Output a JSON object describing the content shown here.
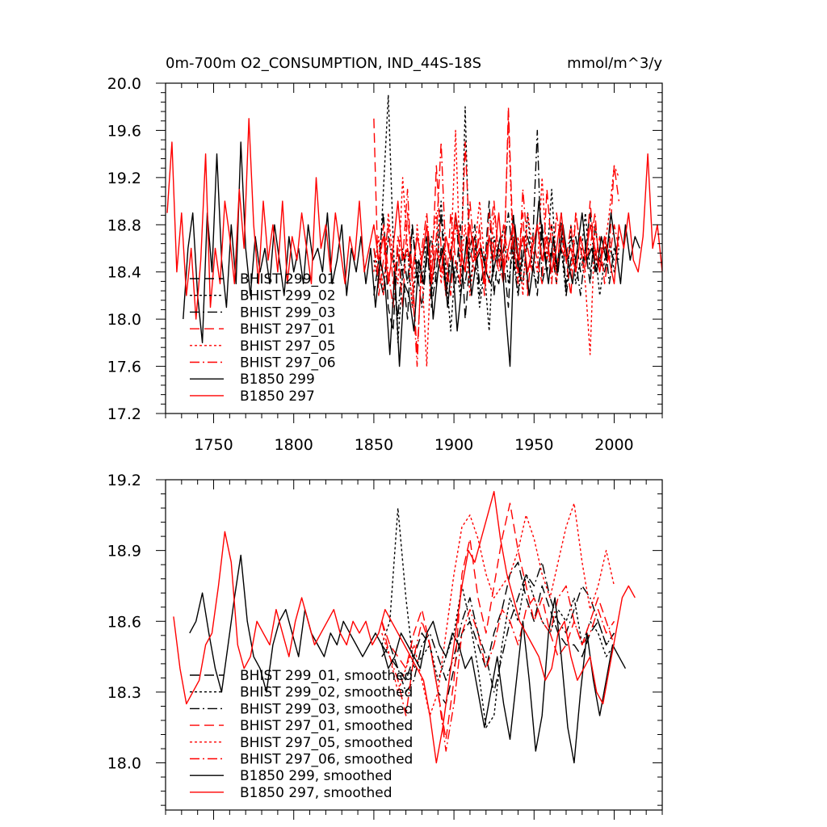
{
  "figure": {
    "title_left": "0m-700m O2_CONSUMPTION, IND_44S-18S",
    "title_right": "mmol/m^3/y"
  },
  "chart_data": [
    {
      "type": "line",
      "xlim": [
        1720,
        2030
      ],
      "ylim": [
        17.2,
        20.0
      ],
      "x_ticks": [
        1750,
        1800,
        1850,
        1900,
        1950,
        2000
      ],
      "x_tick_labels": [
        "1750",
        "1800",
        "1850",
        "1900",
        "1950",
        "2000"
      ],
      "y_ticks": [
        17.2,
        17.6,
        18.0,
        18.4,
        18.8,
        19.2,
        19.6,
        20.0
      ],
      "y_tick_labels": [
        "17.2",
        "17.6",
        "18.0",
        "18.4",
        "18.8",
        "19.2",
        "19.6",
        "20.0"
      ],
      "legend_position": "lower-left",
      "series": [
        {
          "name": "BHIST 299_01",
          "color": "#000000",
          "dash": "long-dash",
          "x_start": 1850,
          "x_step": 3,
          "values": [
            18.2,
            18.5,
            18.9,
            18.1,
            17.9,
            18.6,
            18.4,
            18.0,
            18.8,
            18.3,
            18.5,
            18.7,
            18.1,
            18.4,
            18.9,
            18.2,
            18.6,
            18.3,
            18.8,
            18.0,
            18.5,
            18.7,
            18.3,
            18.4,
            19.0,
            18.2,
            18.6,
            18.5,
            18.1,
            18.9,
            18.4,
            18.3,
            18.7,
            18.5,
            18.2,
            18.8,
            18.4,
            18.6,
            18.3,
            18.9,
            18.2,
            18.5,
            18.7,
            18.4,
            18.6,
            18.3,
            18.8,
            18.5,
            18.4,
            18.6,
            18.5,
            18.7
          ]
        },
        {
          "name": "BHIST 299_02",
          "color": "#000000",
          "dash": "dot",
          "x_start": 1850,
          "x_step": 3,
          "values": [
            18.5,
            18.3,
            19.1,
            19.9,
            18.7,
            17.8,
            18.4,
            18.6,
            18.1,
            18.5,
            18.3,
            18.7,
            18.2,
            18.6,
            19.0,
            18.4,
            17.9,
            18.5,
            18.2,
            19.8,
            18.3,
            18.6,
            18.1,
            18.4,
            17.9,
            18.7,
            18.5,
            18.8,
            18.3,
            18.6,
            18.2,
            18.5,
            18.9,
            18.4,
            18.3,
            18.7,
            18.5,
            19.1,
            18.4,
            18.6,
            18.2,
            18.8,
            18.3,
            18.5,
            18.9,
            18.4,
            18.6,
            18.2,
            18.5,
            18.7,
            18.4,
            18.6
          ]
        },
        {
          "name": "BHIST 299_03",
          "color": "#000000",
          "dash": "dash-dot",
          "x_start": 1850,
          "x_step": 3,
          "values": [
            18.6,
            18.4,
            18.2,
            18.7,
            18.5,
            18.0,
            18.6,
            18.3,
            18.8,
            18.4,
            18.1,
            18.5,
            18.7,
            18.3,
            18.6,
            18.2,
            18.5,
            18.9,
            18.4,
            18.3,
            18.6,
            18.8,
            18.2,
            18.5,
            18.7,
            18.4,
            18.3,
            18.6,
            18.9,
            18.5,
            18.2,
            18.7,
            18.4,
            18.6,
            19.6,
            18.3,
            18.5,
            18.8,
            18.4,
            18.6,
            18.3,
            18.7,
            18.5,
            18.2,
            18.6,
            18.9,
            18.4,
            18.5,
            18.7,
            18.3,
            18.6,
            18.5
          ]
        },
        {
          "name": "BHIST 297_01",
          "color": "#ff0000",
          "dash": "long-dash",
          "x_start": 1850,
          "x_step": 3,
          "values": [
            19.7,
            18.2,
            18.5,
            18.8,
            18.3,
            18.6,
            18.1,
            18.9,
            18.4,
            17.7,
            18.5,
            18.8,
            18.3,
            19.3,
            18.6,
            18.2,
            18.9,
            18.5,
            18.3,
            19.5,
            18.6,
            18.4,
            18.8,
            18.2,
            18.7,
            19.0,
            18.5,
            18.3,
            19.8,
            18.6,
            18.4,
            18.9,
            18.2,
            18.7,
            18.5,
            18.3,
            19.1,
            18.6,
            18.4,
            18.8,
            18.5,
            18.2,
            18.9,
            18.6,
            18.4,
            19.0,
            18.5,
            18.7,
            18.3,
            18.6,
            19.3,
            19.0
          ]
        },
        {
          "name": "BHIST 297_05",
          "color": "#ff0000",
          "dash": "dot",
          "x_start": 1850,
          "x_step": 3,
          "values": [
            18.4,
            18.7,
            18.2,
            18.9,
            18.5,
            18.3,
            19.2,
            18.6,
            18.1,
            18.8,
            18.4,
            17.6,
            18.6,
            18.9,
            18.3,
            18.7,
            18.5,
            19.6,
            18.4,
            18.8,
            18.2,
            18.6,
            19.0,
            18.5,
            18.3,
            18.9,
            18.6,
            18.4,
            19.7,
            18.5,
            18.7,
            18.2,
            18.9,
            18.6,
            18.4,
            19.2,
            18.5,
            18.8,
            18.3,
            18.7,
            18.5,
            18.4,
            18.9,
            18.6,
            18.3,
            17.7,
            18.8,
            18.5,
            18.6,
            18.9,
            19.3,
            19.2
          ]
        },
        {
          "name": "BHIST 297_06",
          "color": "#ff0000",
          "dash": "dash-dot",
          "x_start": 1850,
          "x_step": 3,
          "values": [
            18.6,
            18.3,
            18.8,
            18.4,
            18.1,
            18.7,
            18.5,
            19.1,
            18.3,
            17.6,
            18.6,
            18.9,
            18.4,
            18.7,
            19.5,
            18.5,
            18.2,
            18.8,
            18.6,
            18.4,
            19.0,
            18.5,
            18.7,
            18.3,
            18.9,
            18.6,
            18.4,
            18.8,
            18.5,
            18.7,
            18.3,
            19.1,
            18.6,
            18.4,
            18.8,
            18.5,
            18.7,
            18.3,
            18.9,
            18.6,
            18.5,
            18.8,
            18.4,
            18.7,
            18.5,
            18.6,
            18.9,
            18.4,
            18.7,
            18.5,
            18.8,
            18.6
          ]
        },
        {
          "name": "B1850 299",
          "color": "#000000",
          "dash": "solid",
          "x_start": 1731,
          "x_step": 3,
          "values": [
            18.0,
            18.6,
            18.9,
            18.2,
            17.8,
            18.9,
            18.4,
            19.4,
            18.5,
            18.1,
            18.8,
            18.3,
            19.5,
            18.6,
            18.2,
            18.7,
            18.4,
            18.6,
            18.3,
            18.8,
            18.5,
            18.2,
            18.7,
            18.4,
            18.6,
            18.3,
            18.8,
            18.5,
            18.6,
            18.4,
            18.9,
            18.3,
            18.5,
            18.8,
            18.2,
            18.6,
            18.4,
            18.7,
            18.3,
            18.6,
            18.1,
            18.5,
            18.3,
            17.7,
            18.4,
            17.6,
            18.3,
            18.2,
            17.9,
            18.5,
            18.3,
            18.7,
            18.0,
            18.4,
            18.6,
            18.1,
            18.5,
            17.9,
            18.3,
            18.7,
            18.2,
            18.5,
            18.6,
            18.4,
            18.3,
            18.5,
            18.7,
            18.1,
            17.6,
            18.8,
            18.4,
            18.6,
            18.2,
            18.5,
            19.0,
            18.6,
            18.3,
            18.7,
            18.4,
            18.8,
            18.5,
            18.3,
            18.6,
            18.9,
            18.5,
            18.6,
            18.4,
            18.7,
            18.5,
            18.9,
            18.6,
            18.3,
            18.8,
            18.5,
            18.7,
            18.6
          ]
        },
        {
          "name": "B1850 297",
          "color": "#ff0000",
          "dash": "solid",
          "x_start": 1721,
          "x_step": 3,
          "values": [
            18.9,
            19.5,
            18.4,
            18.9,
            18.2,
            18.6,
            18.0,
            18.5,
            19.4,
            18.1,
            18.6,
            18.3,
            19.0,
            18.7,
            18.3,
            19.1,
            18.6,
            19.7,
            18.8,
            18.3,
            19.0,
            18.5,
            18.8,
            18.4,
            19.0,
            18.3,
            18.7,
            18.5,
            18.9,
            18.6,
            18.3,
            19.2,
            18.6,
            18.8,
            18.4,
            18.9,
            18.6,
            18.3,
            18.7,
            18.5,
            19.0,
            18.4,
            18.6,
            18.8,
            18.5,
            18.7,
            18.3,
            18.6,
            19.0,
            18.5,
            18.6,
            18.4,
            18.7,
            18.5,
            18.8,
            18.3,
            18.6,
            18.4,
            18.7,
            18.5,
            18.9,
            18.6,
            18.4,
            18.8,
            18.5,
            18.6,
            18.3,
            18.7,
            18.5,
            18.9,
            18.4,
            18.6,
            18.8,
            18.5,
            18.7,
            18.4,
            18.6,
            18.8,
            18.5,
            18.7,
            18.4,
            18.6,
            18.9,
            18.5,
            18.6,
            18.4,
            18.7,
            18.5,
            18.8,
            18.6,
            18.4,
            18.7,
            18.5,
            18.3,
            18.8,
            18.6,
            18.9,
            18.5,
            18.4,
            18.7,
            19.4,
            18.6,
            18.8,
            18.4
          ]
        }
      ]
    },
    {
      "type": "line",
      "xlim": [
        1720,
        2030
      ],
      "ylim": [
        17.8,
        19.2
      ],
      "x_ticks": [
        1750,
        1800,
        1850,
        1900,
        1950,
        2000
      ],
      "x_tick_labels": [
        "",
        "",
        "",
        "",
        "",
        ""
      ],
      "y_ticks": [
        18.0,
        18.3,
        18.6,
        18.9,
        19.2
      ],
      "y_tick_labels": [
        "18.0",
        "18.3",
        "18.6",
        "18.9",
        "19.2"
      ],
      "legend_position": "lower-left",
      "series": [
        {
          "name": "BHIST 299_01, smoothed",
          "color": "#000000",
          "dash": "long-dash",
          "x_start": 1855,
          "x_step": 5,
          "values": [
            18.45,
            18.5,
            18.4,
            18.35,
            18.45,
            18.55,
            18.5,
            18.3,
            18.25,
            18.4,
            18.55,
            18.6,
            18.5,
            18.4,
            18.55,
            18.65,
            18.8,
            18.85,
            18.7,
            18.6,
            18.75,
            18.65,
            18.55,
            18.5,
            18.5,
            18.45,
            18.55,
            18.6,
            18.5,
            18.55
          ]
        },
        {
          "name": "BHIST 299_02, smoothed",
          "color": "#000000",
          "dash": "dot",
          "x_start": 1855,
          "x_step": 5,
          "values": [
            18.5,
            18.6,
            19.08,
            18.7,
            18.4,
            18.45,
            18.5,
            18.35,
            18.45,
            18.55,
            18.75,
            18.6,
            18.4,
            18.15,
            18.2,
            18.5,
            18.7,
            18.6,
            18.8,
            18.7,
            18.6,
            18.55,
            18.65,
            18.6,
            18.7,
            18.5,
            18.6,
            18.55,
            18.45,
            18.5
          ]
        },
        {
          "name": "BHIST 299_03, smoothed",
          "color": "#000000",
          "dash": "dash-dot",
          "x_start": 1855,
          "x_step": 5,
          "values": [
            18.5,
            18.45,
            18.4,
            18.3,
            18.35,
            18.5,
            18.55,
            18.45,
            18.35,
            18.45,
            18.6,
            18.7,
            18.55,
            18.45,
            18.3,
            18.45,
            18.6,
            18.7,
            18.8,
            18.75,
            18.85,
            18.7,
            18.6,
            18.55,
            18.65,
            18.75,
            18.7,
            18.6,
            18.5,
            18.55
          ]
        },
        {
          "name": "BHIST 297_01, smoothed",
          "color": "#ff0000",
          "dash": "long-dash",
          "x_start": 1855,
          "x_step": 5,
          "values": [
            18.6,
            18.5,
            18.45,
            18.4,
            18.55,
            18.65,
            18.5,
            18.3,
            18.1,
            18.35,
            18.8,
            18.95,
            18.7,
            18.55,
            18.75,
            18.95,
            19.1,
            18.9,
            18.75,
            18.6,
            18.7,
            18.55,
            18.45,
            18.5,
            18.6,
            18.5,
            18.6,
            18.7,
            18.6,
            18.5
          ]
        },
        {
          "name": "BHIST 297_05, smoothed",
          "color": "#ff0000",
          "dash": "dot",
          "x_start": 1855,
          "x_step": 5,
          "values": [
            18.55,
            18.45,
            18.3,
            18.4,
            18.5,
            18.35,
            18.2,
            18.3,
            18.55,
            18.8,
            19.0,
            19.05,
            18.95,
            18.8,
            18.7,
            18.75,
            18.8,
            18.9,
            19.05,
            18.95,
            18.8,
            18.7,
            18.85,
            19.0,
            19.1,
            18.85,
            18.65,
            18.75,
            18.9,
            18.75
          ]
        },
        {
          "name": "BHIST 297_06, smoothed",
          "color": "#ff0000",
          "dash": "dash-dot",
          "x_start": 1855,
          "x_step": 5,
          "values": [
            18.6,
            18.45,
            18.35,
            18.2,
            18.45,
            18.6,
            18.5,
            18.3,
            18.05,
            18.25,
            18.55,
            18.65,
            18.55,
            18.4,
            18.5,
            18.65,
            18.6,
            18.5,
            18.65,
            18.7,
            18.6,
            18.55,
            18.7,
            18.75,
            18.6,
            18.5,
            18.55,
            18.65,
            18.55,
            18.6
          ]
        },
        {
          "name": "B1850 299, smoothed",
          "color": "#000000",
          "dash": "solid",
          "x_start": 1735,
          "x_step": 4,
          "values": [
            18.55,
            18.6,
            18.72,
            18.55,
            18.4,
            18.3,
            18.5,
            18.7,
            18.88,
            18.6,
            18.45,
            18.4,
            18.3,
            18.5,
            18.6,
            18.65,
            18.55,
            18.45,
            18.65,
            18.55,
            18.5,
            18.45,
            18.55,
            18.5,
            18.6,
            18.55,
            18.5,
            18.45,
            18.5,
            18.55,
            18.5,
            18.4,
            18.45,
            18.55,
            18.5,
            18.45,
            18.4,
            18.55,
            18.6,
            18.5,
            18.45,
            18.55,
            18.5,
            18.4,
            18.45,
            18.3,
            18.15,
            18.3,
            18.45,
            18.25,
            18.1,
            18.35,
            18.6,
            18.35,
            18.05,
            18.2,
            18.55,
            18.7,
            18.45,
            18.15,
            18.0,
            18.3,
            18.55,
            18.35,
            18.2,
            18.35,
            18.5,
            18.45,
            18.4
          ]
        },
        {
          "name": "B1850 297, smoothed",
          "color": "#ff0000",
          "dash": "solid",
          "x_start": 1725,
          "x_step": 4,
          "values": [
            18.62,
            18.4,
            18.25,
            18.3,
            18.35,
            18.5,
            18.55,
            18.75,
            18.98,
            18.85,
            18.5,
            18.4,
            18.45,
            18.6,
            18.55,
            18.5,
            18.65,
            18.55,
            18.45,
            18.6,
            18.7,
            18.6,
            18.5,
            18.55,
            18.6,
            18.65,
            18.55,
            18.5,
            18.6,
            18.55,
            18.6,
            18.5,
            18.55,
            18.65,
            18.6,
            18.55,
            18.5,
            18.45,
            18.4,
            18.35,
            18.2,
            18.0,
            18.15,
            18.35,
            18.55,
            18.75,
            18.9,
            18.85,
            18.95,
            19.05,
            19.15,
            18.95,
            18.8,
            18.7,
            18.6,
            18.55,
            18.5,
            18.45,
            18.35,
            18.4,
            18.55,
            18.6,
            18.45,
            18.35,
            18.4,
            18.45,
            18.3,
            18.25,
            18.4,
            18.55,
            18.7,
            18.75,
            18.7
          ]
        }
      ]
    }
  ]
}
